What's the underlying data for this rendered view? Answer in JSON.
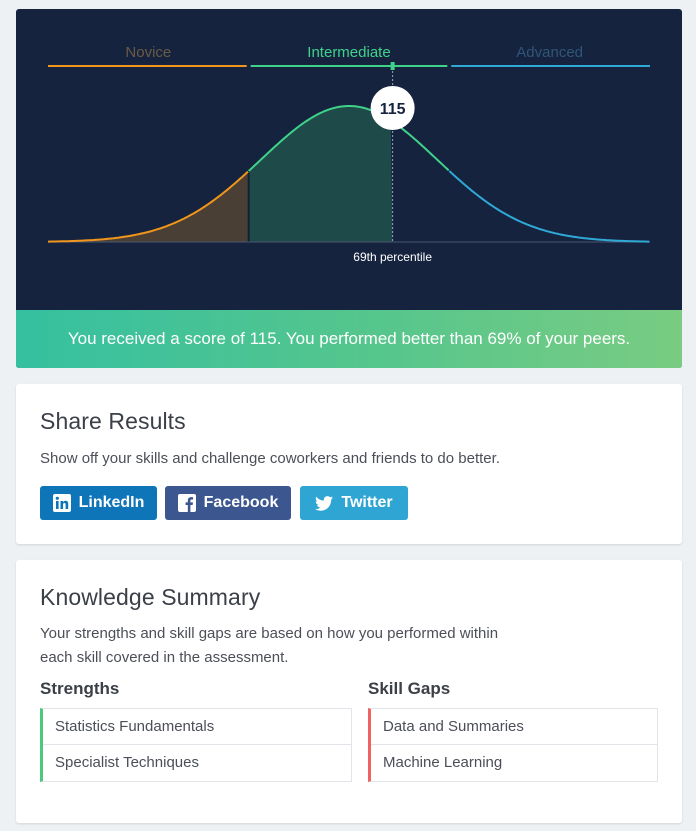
{
  "chart_data": {
    "type": "area",
    "levels": [
      {
        "name": "Novice",
        "color": "#f0961b"
      },
      {
        "name": "Intermediate",
        "color": "#3fd38a"
      },
      {
        "name": "Advanced",
        "color": "#2fa9d6"
      }
    ],
    "score": "115",
    "percentile": 69,
    "percentile_label": "69th percentile"
  },
  "score_banner": "You received a score of 115. You performed better than 69% of your peers.",
  "share": {
    "title": "Share Results",
    "description": "Show off your skills and challenge coworkers and friends to do better.",
    "buttons": {
      "linkedin": "LinkedIn",
      "facebook": "Facebook",
      "twitter": "Twitter"
    }
  },
  "knowledge": {
    "title": "Knowledge Summary",
    "description_line1": "Your strengths and skill gaps are based on how you performed within",
    "description_line2": "each skill covered in the assessment.",
    "strengths": {
      "heading": "Strengths",
      "items": [
        "Statistics Fundamentals",
        "Specialist Techniques"
      ]
    },
    "gaps": {
      "heading": "Skill Gaps",
      "items": [
        "Data and Summaries",
        "Machine Learning"
      ]
    }
  },
  "icons": {
    "linkedin": "linkedin-icon",
    "facebook": "facebook-icon",
    "twitter": "twitter-icon"
  }
}
